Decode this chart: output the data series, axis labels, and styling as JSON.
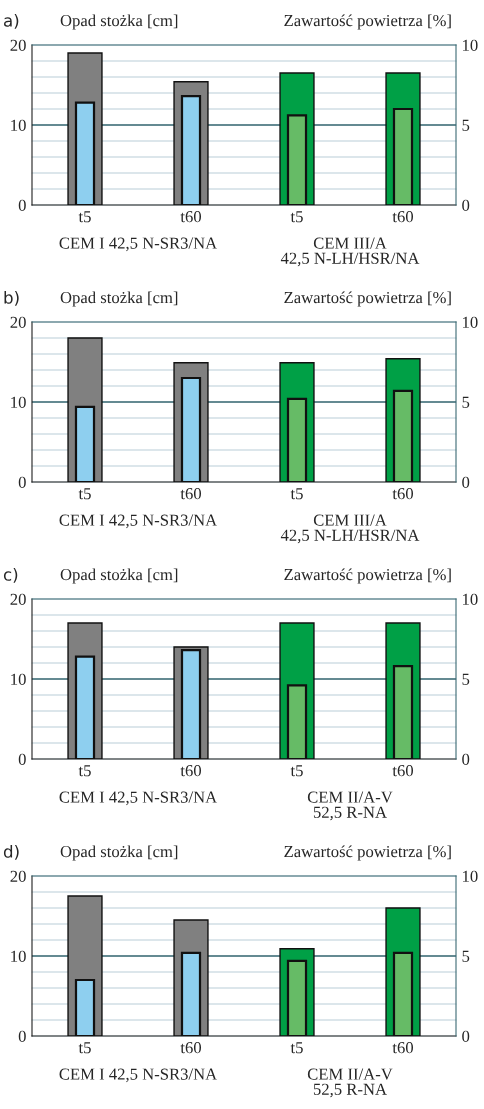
{
  "chart_data": [
    {
      "type": "bar",
      "title": "a)",
      "ylabel": "Opad stożka [cm]",
      "y2label": "Zawartość powietrza [%]",
      "categories": [
        "t5",
        "t60",
        "t5",
        "t60"
      ],
      "ylim": [
        0,
        20
      ],
      "yticks": [
        0,
        {
          "value": 2,
          "label": null
        },
        {
          "value": 4,
          "label": null
        },
        {
          "value": 6,
          "label": null
        },
        {
          "value": 8,
          "label": null
        },
        10,
        {
          "value": 12,
          "label": null
        },
        {
          "value": 14,
          "label": null
        },
        {
          "value": 16,
          "label": null
        },
        {
          "value": 18,
          "label": null
        },
        20
      ],
      "y2lim": [
        0,
        10
      ],
      "y2ticks": [
        0,
        5,
        10
      ],
      "grid": "y",
      "ref_lines": [
        {
          "axis": "y",
          "value": 10,
          "color": "#3d6b75"
        }
      ],
      "series": [
        {
          "values": [
            19.0,
            15.4,
            16.5,
            16.5
          ],
          "colors": [
            "#808080",
            "#808080",
            "#00a046",
            "#00a046"
          ]
        },
        {
          "values": [
            6.4,
            6.8,
            5.6,
            6.0
          ],
          "axis": "y2",
          "colors": [
            "#8ecfef",
            "#8ecfef",
            "#66bb66",
            "#66bb66"
          ]
        }
      ],
      "annotations": [
        "CEM I 42,5 N-SR3/NA",
        "CEM III/A\n42,5 N-LH/HSR/NA"
      ]
    },
    {
      "type": "bar",
      "title": "b)",
      "ylabel": "Opad stożka [cm]",
      "y2label": "Zawartość powietrza [%]",
      "categories": [
        "t5",
        "t60",
        "t5",
        "t60"
      ],
      "ylim": [
        0,
        20
      ],
      "yticks": [
        0,
        {
          "value": 2,
          "label": null
        },
        {
          "value": 4,
          "label": null
        },
        {
          "value": 6,
          "label": null
        },
        {
          "value": 8,
          "label": null
        },
        10,
        {
          "value": 12,
          "label": null
        },
        {
          "value": 14,
          "label": null
        },
        {
          "value": 16,
          "label": null
        },
        {
          "value": 18,
          "label": null
        },
        20
      ],
      "y2lim": [
        0,
        10
      ],
      "y2ticks": [
        0,
        5,
        10
      ],
      "grid": "y",
      "ref_lines": [
        {
          "axis": "y",
          "value": 10,
          "color": "#3d6b75"
        }
      ],
      "series": [
        {
          "values": [
            18.0,
            14.9,
            14.9,
            15.4
          ],
          "colors": [
            "#808080",
            "#808080",
            "#00a046",
            "#00a046"
          ]
        },
        {
          "values": [
            4.7,
            6.5,
            5.2,
            5.7
          ],
          "axis": "y2",
          "colors": [
            "#8ecfef",
            "#8ecfef",
            "#66bb66",
            "#66bb66"
          ]
        }
      ],
      "annotations": [
        "CEM I 42,5 N-SR3/NA",
        "CEM III/A\n42,5 N-LH/HSR/NA"
      ]
    },
    {
      "type": "bar",
      "title": "c)",
      "ylabel": "Opad stożka [cm]",
      "y2label": "Zawartość powietrza [%]",
      "categories": [
        "t5",
        "t60",
        "t5",
        "t60"
      ],
      "ylim": [
        0,
        20
      ],
      "yticks": [
        0,
        {
          "value": 2,
          "label": null
        },
        {
          "value": 4,
          "label": null
        },
        {
          "value": 6,
          "label": null
        },
        {
          "value": 8,
          "label": null
        },
        10,
        {
          "value": 12,
          "label": null
        },
        {
          "value": 14,
          "label": null
        },
        {
          "value": 16,
          "label": null
        },
        {
          "value": 18,
          "label": null
        },
        20
      ],
      "y2lim": [
        0,
        10
      ],
      "y2ticks": [
        0,
        5,
        10
      ],
      "grid": "y",
      "ref_lines": [
        {
          "axis": "y",
          "value": 10,
          "color": "#3d6b75"
        }
      ],
      "series": [
        {
          "values": [
            17.0,
            14.0,
            17.0,
            17.0
          ],
          "colors": [
            "#808080",
            "#808080",
            "#00a046",
            "#00a046"
          ]
        },
        {
          "values": [
            6.4,
            6.8,
            4.6,
            5.8
          ],
          "axis": "y2",
          "colors": [
            "#8ecfef",
            "#8ecfef",
            "#66bb66",
            "#66bb66"
          ]
        }
      ],
      "annotations": [
        "CEM I 42,5 N-SR3/NA",
        "CEM II/A-V\n52,5 R-NA"
      ]
    },
    {
      "type": "bar",
      "title": "d)",
      "ylabel": "Opad stożka [cm]",
      "y2label": "Zawartość powietrza [%]",
      "categories": [
        "t5",
        "t60",
        "t5",
        "t60"
      ],
      "ylim": [
        0,
        20
      ],
      "yticks": [
        0,
        {
          "value": 2,
          "label": null
        },
        {
          "value": 4,
          "label": null
        },
        {
          "value": 6,
          "label": null
        },
        {
          "value": 8,
          "label": null
        },
        10,
        {
          "value": 12,
          "label": null
        },
        {
          "value": 14,
          "label": null
        },
        {
          "value": 16,
          "label": null
        },
        {
          "value": 18,
          "label": null
        },
        20
      ],
      "y2lim": [
        0,
        10
      ],
      "y2ticks": [
        0,
        5,
        10
      ],
      "grid": "y",
      "ref_lines": [
        {
          "axis": "y",
          "value": 10,
          "color": "#3d6b75"
        }
      ],
      "series": [
        {
          "values": [
            17.5,
            14.5,
            10.9,
            16.0
          ],
          "colors": [
            "#808080",
            "#808080",
            "#00a046",
            "#00a046"
          ]
        },
        {
          "values": [
            3.5,
            5.2,
            4.7,
            5.2
          ],
          "axis": "y2",
          "colors": [
            "#8ecfef",
            "#8ecfef",
            "#66bb66",
            "#66bb66"
          ]
        }
      ],
      "annotations": [
        "CEM I 42,5 N-SR3/NA",
        "CEM II/A-V\n52,5 R-NA"
      ]
    }
  ]
}
